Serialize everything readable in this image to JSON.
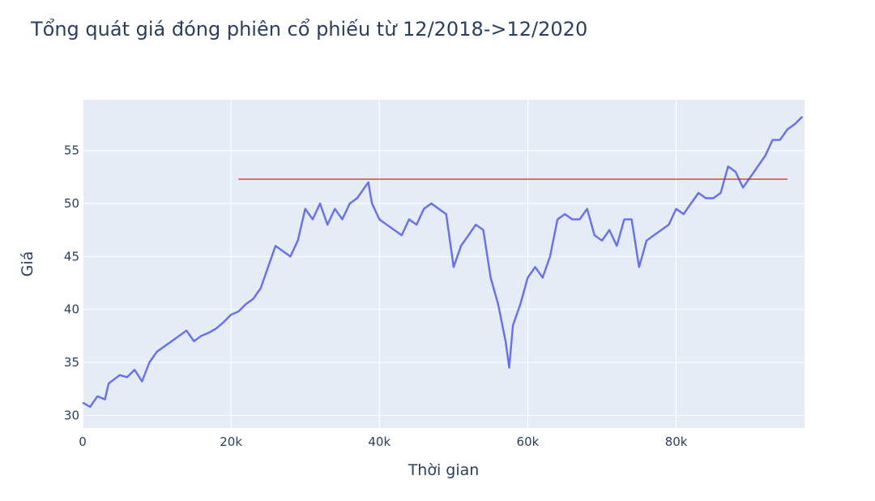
{
  "chart_data": {
    "type": "line",
    "title": "Tổng quát giá đóng phiên cổ phiếu từ 12/2018->12/2020",
    "xlabel": "Thời gian",
    "ylabel": "Giá",
    "xlim": [
      0,
      97300
    ],
    "ylim": [
      28.8,
      59.8
    ],
    "grid": true,
    "legend": "none",
    "x_ticks": [
      {
        "value": 0,
        "label": "0"
      },
      {
        "value": 20000,
        "label": "20k"
      },
      {
        "value": 40000,
        "label": "40k"
      },
      {
        "value": 60000,
        "label": "60k"
      },
      {
        "value": 80000,
        "label": "80k"
      }
    ],
    "y_ticks": [
      {
        "value": 30,
        "label": "30"
      },
      {
        "value": 35,
        "label": "35"
      },
      {
        "value": 40,
        "label": "40"
      },
      {
        "value": 45,
        "label": "45"
      },
      {
        "value": 50,
        "label": "50"
      },
      {
        "value": 55,
        "label": "55"
      }
    ],
    "series": [
      {
        "color": "#636efa",
        "x": [
          0,
          1000,
          2000,
          3000,
          3500,
          5000,
          6000,
          7000,
          8000,
          9000,
          10000,
          11000,
          12000,
          14000,
          15000,
          16000,
          17000,
          18000,
          19000,
          20000,
          21000,
          22000,
          23000,
          24000,
          25000,
          26000,
          27000,
          28000,
          29000,
          30000,
          31000,
          32000,
          33000,
          34000,
          35000,
          36000,
          37000,
          38000,
          38500,
          39000,
          40000,
          41000,
          42000,
          43000,
          44000,
          45000,
          46000,
          47000,
          48000,
          49000,
          50000,
          51000,
          52000,
          53000,
          54000,
          55000,
          56000,
          57000,
          57500,
          58000,
          59000,
          60000,
          61000,
          62000,
          63000,
          64000,
          65000,
          66000,
          67000,
          68000,
          69000,
          70000,
          71000,
          72000,
          73000,
          74000,
          75000,
          76000,
          77000,
          78000,
          79000,
          80000,
          81000,
          82000,
          83000,
          84000,
          85000,
          86000,
          87000,
          88000,
          89000,
          90000,
          91000,
          92000,
          93000,
          94000,
          95000,
          96000,
          97000
        ],
        "y": [
          31.2,
          30.8,
          31.8,
          31.5,
          33.0,
          33.8,
          33.6,
          34.3,
          33.2,
          35.0,
          36.0,
          36.5,
          37.0,
          38.0,
          37.0,
          37.5,
          37.8,
          38.2,
          38.8,
          39.5,
          39.8,
          40.5,
          41.0,
          42.0,
          44.0,
          46.0,
          45.5,
          45.0,
          46.5,
          49.5,
          48.5,
          50.0,
          48.0,
          49.5,
          48.5,
          50.0,
          50.5,
          51.5,
          52.0,
          50.0,
          48.5,
          48.0,
          47.5,
          47.0,
          48.5,
          48.0,
          49.5,
          50.0,
          49.5,
          49.0,
          44.0,
          46.0,
          47.0,
          48.0,
          47.5,
          43.0,
          40.5,
          37.0,
          34.5,
          38.5,
          40.5,
          43.0,
          44.0,
          43.0,
          45.0,
          48.5,
          49.0,
          48.5,
          48.5,
          49.5,
          47.0,
          46.5,
          47.5,
          46.0,
          48.5,
          48.5,
          44.0,
          46.5,
          47.0,
          47.5,
          48.0,
          49.5,
          49.0,
          50.0,
          51.0,
          50.5,
          50.5,
          51.0,
          53.5,
          53.0,
          51.5,
          52.5,
          53.5,
          54.5,
          56.0,
          56.0,
          57.0,
          57.5,
          58.2
        ]
      },
      {
        "color": "#e0201a",
        "x": [
          21000,
          95000
        ],
        "y": [
          52.3,
          52.3
        ]
      }
    ]
  }
}
